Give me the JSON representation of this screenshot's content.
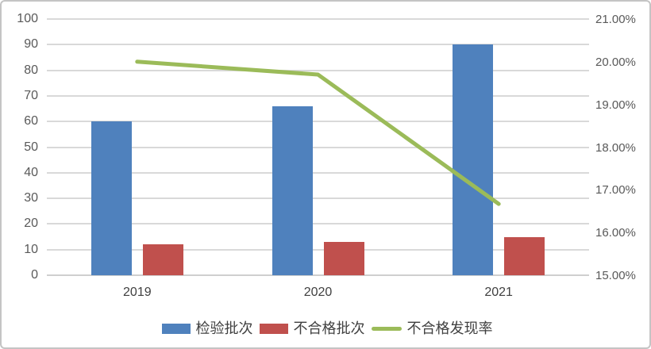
{
  "chart_data": {
    "type": "bar",
    "subtype": "combo-bar-line",
    "categories": [
      "2019",
      "2020",
      "2021"
    ],
    "series": [
      {
        "name": "检验批次",
        "type": "bar",
        "axis": "left",
        "color": "#4F81BD",
        "values": [
          60,
          66,
          90
        ]
      },
      {
        "name": "不合格批次",
        "type": "bar",
        "axis": "left",
        "color": "#C0504D",
        "values": [
          12,
          13,
          15
        ]
      },
      {
        "name": "不合格发现率",
        "type": "line",
        "axis": "right",
        "color": "#9BBB59",
        "values": [
          20.0,
          19.7,
          16.67
        ]
      }
    ],
    "left_axis": {
      "min": 0,
      "max": 100,
      "step": 10,
      "ticks": [
        "100",
        "90",
        "80",
        "70",
        "60",
        "50",
        "40",
        "30",
        "20",
        "10",
        "0"
      ]
    },
    "right_axis": {
      "min": 15,
      "max": 21,
      "step": 1,
      "ticks": [
        "21.00%",
        "20.00%",
        "19.00%",
        "18.00%",
        "17.00%",
        "16.00%",
        "15.00%"
      ]
    },
    "grid": true,
    "legend_position": "bottom",
    "colors": {
      "grid": "#d9d9d9",
      "tick_text": "#595959",
      "label_text": "#404040"
    }
  }
}
